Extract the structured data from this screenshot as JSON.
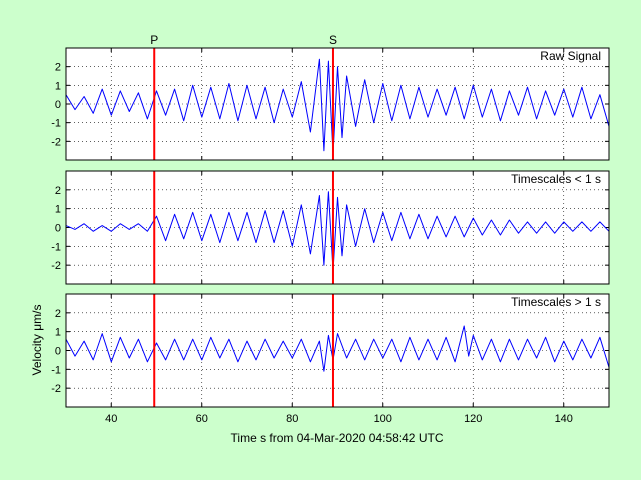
{
  "colors": {
    "background": "#ccffcc",
    "trace": "#0000ff",
    "phase_line": "#ff0000",
    "axes_bg": "#ffffff",
    "grid": "#000000"
  },
  "chart_data": {
    "type": "line",
    "title": "",
    "xlabel": "Time s from 04-Mar-2020 04:58:42 UTC",
    "ylabel": "Velocity μm/s",
    "xlim": [
      30,
      150
    ],
    "xticks": [
      40,
      60,
      80,
      100,
      120,
      140
    ],
    "ylim": [
      -3,
      3
    ],
    "yticks": [
      -2,
      -1,
      0,
      1,
      2
    ],
    "grid": true,
    "phase_markers": [
      {
        "name": "P",
        "x": 49.5
      },
      {
        "name": "S",
        "x": 89
      }
    ],
    "panels": [
      {
        "label": "Raw Signal",
        "series": [
          {
            "x": [
              30,
              32,
              34,
              36,
              38,
              40,
              42,
              44,
              46,
              48,
              50,
              52,
              54,
              56,
              58,
              60,
              62,
              64,
              66,
              68,
              70,
              72,
              74,
              76,
              78,
              80,
              82,
              84,
              86,
              87,
              88,
              89,
              90,
              91,
              92,
              94,
              96,
              98,
              100,
              102,
              104,
              106,
              108,
              110,
              112,
              114,
              116,
              118,
              120,
              122,
              124,
              126,
              128,
              130,
              132,
              134,
              136,
              138,
              140,
              142,
              144,
              146,
              148,
              150
            ],
            "y": [
              0.5,
              -0.3,
              0.4,
              -0.5,
              0.8,
              -0.6,
              0.7,
              -0.4,
              0.6,
              -0.8,
              0.7,
              -0.6,
              0.8,
              -0.9,
              1.0,
              -0.7,
              0.9,
              -0.8,
              1.1,
              -0.9,
              1.0,
              -0.8,
              0.9,
              -1.0,
              0.8,
              -0.7,
              1.2,
              -1.5,
              2.4,
              -2.5,
              2.3,
              -2.7,
              2.0,
              -1.8,
              1.5,
              -1.2,
              1.3,
              -1.0,
              1.1,
              -0.9,
              1.0,
              -0.8,
              0.9,
              -0.7,
              0.8,
              -0.6,
              0.9,
              -0.8,
              1.0,
              -0.7,
              0.8,
              -0.9,
              0.7,
              -0.6,
              0.9,
              -0.8,
              0.7,
              -0.6,
              0.8,
              -0.7,
              0.9,
              -0.8,
              0.5,
              -1.2
            ]
          }
        ]
      },
      {
        "label": "Timescales < 1 s",
        "series": [
          {
            "x": [
              30,
              32,
              34,
              36,
              38,
              40,
              42,
              44,
              46,
              48,
              50,
              52,
              54,
              56,
              58,
              60,
              62,
              64,
              66,
              68,
              70,
              72,
              74,
              76,
              78,
              80,
              82,
              84,
              86,
              87,
              88,
              89,
              90,
              91,
              92,
              94,
              96,
              98,
              100,
              102,
              104,
              106,
              108,
              110,
              112,
              114,
              116,
              118,
              120,
              122,
              124,
              126,
              128,
              130,
              132,
              134,
              136,
              138,
              140,
              142,
              144,
              146,
              148,
              150
            ],
            "y": [
              0.1,
              -0.1,
              0.2,
              -0.2,
              0.1,
              -0.2,
              0.2,
              -0.1,
              0.2,
              -0.2,
              0.6,
              -0.7,
              0.7,
              -0.6,
              0.8,
              -0.7,
              0.7,
              -0.8,
              0.8,
              -0.7,
              0.8,
              -0.8,
              0.9,
              -0.8,
              0.9,
              -1.0,
              1.2,
              -1.4,
              1.7,
              -2.0,
              1.9,
              -2.3,
              1.6,
              -1.5,
              1.2,
              -1.0,
              1.0,
              -0.8,
              0.8,
              -0.7,
              0.8,
              -0.6,
              0.7,
              -0.6,
              0.6,
              -0.5,
              0.6,
              -0.5,
              0.5,
              -0.4,
              0.4,
              -0.4,
              0.4,
              -0.3,
              0.3,
              -0.3,
              0.3,
              -0.3,
              0.3,
              -0.2,
              0.3,
              -0.2,
              0.3,
              -0.2
            ]
          }
        ]
      },
      {
        "label": "Timescales > 1 s",
        "series": [
          {
            "x": [
              30,
              32,
              34,
              36,
              38,
              40,
              42,
              44,
              46,
              48,
              50,
              52,
              54,
              56,
              58,
              60,
              62,
              64,
              66,
              68,
              70,
              72,
              74,
              76,
              78,
              80,
              82,
              84,
              86,
              87,
              88,
              89,
              90,
              92,
              94,
              96,
              98,
              100,
              102,
              104,
              106,
              108,
              110,
              112,
              114,
              116,
              118,
              119,
              120,
              122,
              124,
              126,
              128,
              130,
              132,
              134,
              136,
              138,
              140,
              142,
              144,
              146,
              148,
              150
            ],
            "y": [
              0.6,
              -0.3,
              0.5,
              -0.5,
              0.9,
              -0.6,
              0.7,
              -0.4,
              0.6,
              -0.6,
              0.4,
              -0.5,
              0.6,
              -0.5,
              0.6,
              -0.5,
              0.7,
              -0.4,
              0.6,
              -0.6,
              0.5,
              -0.5,
              0.6,
              -0.4,
              0.5,
              -0.4,
              0.6,
              -0.6,
              0.5,
              -1.1,
              0.8,
              -0.5,
              0.9,
              -0.4,
              0.6,
              -0.5,
              0.6,
              -0.4,
              0.6,
              -0.6,
              0.7,
              -0.5,
              0.6,
              -0.5,
              0.7,
              -0.6,
              1.3,
              -0.3,
              0.8,
              -0.5,
              0.6,
              -0.6,
              0.6,
              -0.5,
              0.6,
              -0.4,
              0.7,
              -0.6,
              0.5,
              -0.5,
              0.6,
              -0.4,
              0.7,
              -0.9
            ]
          }
        ]
      }
    ]
  }
}
